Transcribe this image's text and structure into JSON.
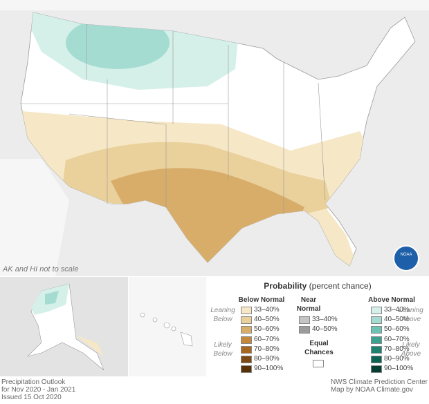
{
  "map": {
    "note": "AK and HI not to scale",
    "logo": "NOAA"
  },
  "legend": {
    "title": "Probability",
    "subtitle": "(percent chance)",
    "below": {
      "heading": "Below Normal",
      "groups": [
        "Leaning Below",
        "Likely Below"
      ],
      "items": [
        {
          "label": "33–40%",
          "color": "#f6e7c6"
        },
        {
          "label": "40–50%",
          "color": "#ead09b"
        },
        {
          "label": "50–60%",
          "color": "#d8ad6a"
        },
        {
          "label": "60–70%",
          "color": "#c5883a"
        },
        {
          "label": "70–80%",
          "color": "#a6661e"
        },
        {
          "label": "80–90%",
          "color": "#7d4912"
        },
        {
          "label": "90–100%",
          "color": "#573006"
        }
      ]
    },
    "near": {
      "heading": "Near Normal",
      "items": [
        {
          "label": "33–40%",
          "color": "#c4c4c4"
        },
        {
          "label": "40–50%",
          "color": "#9c9c9c"
        }
      ],
      "equal": "Equal Chances"
    },
    "above": {
      "heading": "Above Normal",
      "groups": [
        "Leaning Above",
        "Likely Above"
      ],
      "items": [
        {
          "label": "33–40%",
          "color": "#d5efe9"
        },
        {
          "label": "40–50%",
          "color": "#a5dcd1"
        },
        {
          "label": "50–60%",
          "color": "#6cc3b1"
        },
        {
          "label": "60–70%",
          "color": "#3aa28f"
        },
        {
          "label": "70–80%",
          "color": "#1d8270"
        },
        {
          "label": "80–90%",
          "color": "#0b6352"
        },
        {
          "label": "90–100%",
          "color": "#023e32"
        }
      ]
    }
  },
  "footer": {
    "left": [
      "Precipitation Outlook",
      "for Nov 2020 - Jan 2021",
      "Issued 15 Oct 2020"
    ],
    "right": [
      "NWS Climate Prediction Center",
      "Map by NOAA Climate.gov"
    ]
  }
}
